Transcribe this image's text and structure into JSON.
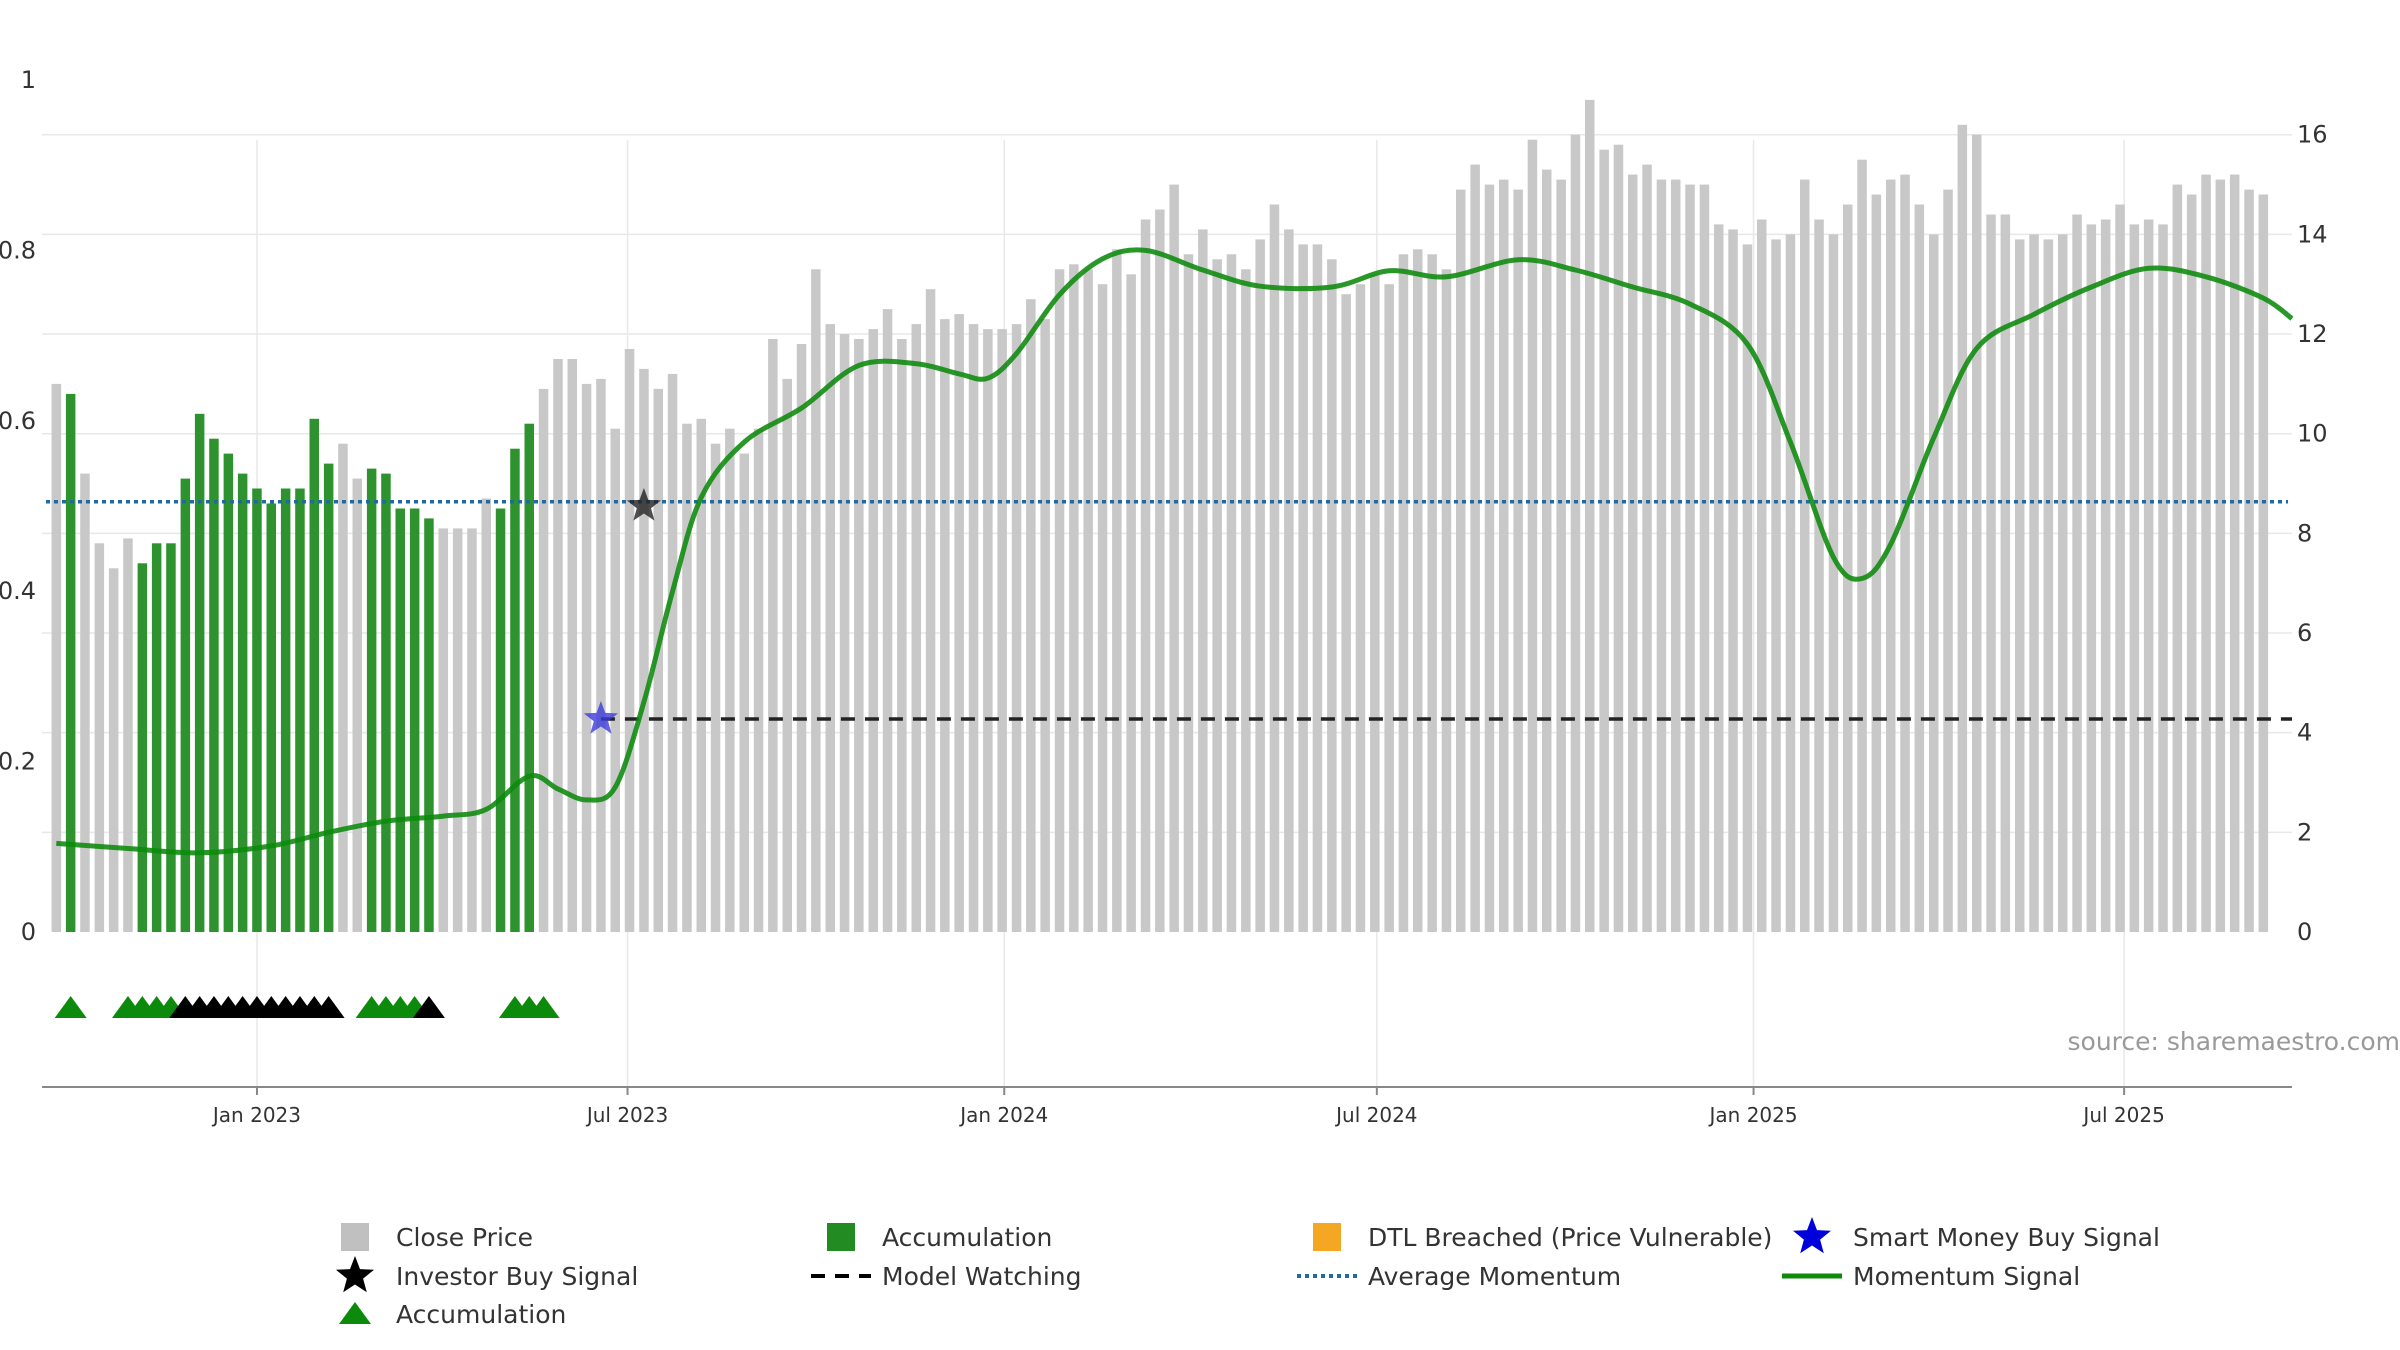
{
  "chart_data": {
    "type": "bar+line",
    "source": "source: sharemaestro.com",
    "x_range": [
      "2022-09-18",
      "2025-09-21"
    ],
    "x_ticks": [
      {
        "date": "2023-01-01",
        "label": "Jan 2023"
      },
      {
        "date": "2023-07-01",
        "label": "Jul 2023"
      },
      {
        "date": "2024-01-01",
        "label": "Jan 2024"
      },
      {
        "date": "2024-07-01",
        "label": "Jul 2024"
      },
      {
        "date": "2025-01-01",
        "label": "Jan 2025"
      },
      {
        "date": "2025-07-01",
        "label": "Jul 2025"
      }
    ],
    "left_axis": {
      "min": 0,
      "max": 1,
      "ticks": [
        0,
        0.2,
        0.4,
        0.6,
        0.8,
        1
      ],
      "tick_labels": [
        "0",
        "0.2",
        "0.4",
        "0.6",
        "0.8",
        "1"
      ]
    },
    "right_axis": {
      "min": 0,
      "max": 17.5,
      "ticks": [
        0,
        2,
        4,
        6,
        8,
        10,
        12,
        14,
        16
      ],
      "tick_labels": [
        "0",
        "2",
        "4",
        "6",
        "8",
        "10",
        "12",
        "14",
        "16"
      ]
    },
    "weekly_start": "2022-09-25",
    "close_price": [
      11.0,
      10.8,
      9.2,
      7.8,
      7.3,
      7.9,
      7.4,
      7.8,
      7.8,
      9.1,
      10.4,
      9.9,
      9.6,
      9.2,
      8.9,
      8.6,
      8.9,
      8.9,
      10.3,
      9.4,
      9.8,
      9.1,
      9.3,
      9.2,
      8.5,
      8.5,
      8.3,
      8.1,
      8.1,
      8.1,
      8.7,
      8.5,
      9.7,
      10.2,
      10.9,
      11.5,
      11.5,
      11.0,
      11.1,
      10.1,
      11.7,
      11.3,
      10.9,
      11.2,
      10.2,
      10.3,
      9.8,
      10.1,
      9.6,
      10.1,
      11.9,
      11.1,
      11.8,
      13.3,
      12.2,
      12.0,
      11.9,
      12.1,
      12.5,
      11.9,
      12.2,
      12.9,
      12.3,
      12.4,
      12.2,
      12.1,
      12.1,
      12.2,
      12.7,
      12.3,
      13.3,
      13.4,
      13.3,
      13.0,
      13.7,
      13.2,
      14.3,
      14.5,
      15.0,
      13.6,
      14.1,
      13.5,
      13.6,
      13.3,
      13.9,
      14.6,
      14.1,
      13.8,
      13.8,
      13.5,
      12.8,
      13.0,
      13.2,
      13.0,
      13.6,
      13.7,
      13.6,
      13.3,
      14.9,
      15.4,
      15.0,
      15.1,
      14.9,
      15.9,
      15.3,
      15.1,
      16.0,
      16.7,
      15.7,
      15.8,
      15.2,
      15.4,
      15.1,
      15.1,
      15.0,
      15.0,
      14.2,
      14.1,
      13.8,
      14.3,
      13.9,
      14.0,
      15.1,
      14.3,
      14.0,
      14.6,
      15.5,
      14.8,
      15.1,
      15.2,
      14.6,
      14.0,
      14.9,
      16.2,
      16.0,
      14.4,
      14.4,
      13.9,
      14.0,
      13.9,
      14.0,
      14.4,
      14.2,
      14.3,
      14.6,
      14.2,
      14.3,
      14.2,
      15.0,
      14.8,
      15.2,
      15.1,
      15.2,
      14.9,
      14.8
    ],
    "accumulation_bar_weeks": [
      1,
      6,
      7,
      8,
      9,
      10,
      11,
      12,
      13,
      14,
      15,
      16,
      17,
      18,
      19,
      22,
      23,
      24,
      25,
      26,
      31,
      32,
      33
    ],
    "momentum_signal": {
      "points": [
        [
          "2022-09-25",
          0.104
        ],
        [
          "2022-10-30",
          0.098
        ],
        [
          "2022-12-04",
          0.093
        ],
        [
          "2023-01-08",
          0.101
        ],
        [
          "2023-02-05",
          0.117
        ],
        [
          "2023-03-05",
          0.13
        ],
        [
          "2023-04-02",
          0.136
        ],
        [
          "2023-04-23",
          0.144
        ],
        [
          "2023-05-14",
          0.183
        ],
        [
          "2023-05-28",
          0.168
        ],
        [
          "2023-06-11",
          0.155
        ],
        [
          "2023-06-25",
          0.17
        ],
        [
          "2023-07-09",
          0.27
        ],
        [
          "2023-07-23",
          0.4
        ],
        [
          "2023-08-06",
          0.51
        ],
        [
          "2023-08-27",
          0.575
        ],
        [
          "2023-09-24",
          0.615
        ],
        [
          "2023-10-22",
          0.665
        ],
        [
          "2023-11-19",
          0.667
        ],
        [
          "2023-12-10",
          0.655
        ],
        [
          "2023-12-24",
          0.65
        ],
        [
          "2024-01-07",
          0.679
        ],
        [
          "2024-01-28",
          0.748
        ],
        [
          "2024-02-18",
          0.79
        ],
        [
          "2024-03-10",
          0.8
        ],
        [
          "2024-04-07",
          0.777
        ],
        [
          "2024-05-05",
          0.758
        ],
        [
          "2024-06-09",
          0.757
        ],
        [
          "2024-07-07",
          0.776
        ],
        [
          "2024-08-04",
          0.769
        ],
        [
          "2024-09-08",
          0.789
        ],
        [
          "2024-10-06",
          0.777
        ],
        [
          "2024-11-03",
          0.757
        ],
        [
          "2024-12-01",
          0.737
        ],
        [
          "2024-12-29",
          0.69
        ],
        [
          "2025-01-19",
          0.575
        ],
        [
          "2025-02-09",
          0.44
        ],
        [
          "2025-02-23",
          0.415
        ],
        [
          "2025-03-09",
          0.455
        ],
        [
          "2025-03-30",
          0.58
        ],
        [
          "2025-04-20",
          0.685
        ],
        [
          "2025-05-18",
          0.725
        ],
        [
          "2025-06-15",
          0.757
        ],
        [
          "2025-07-13",
          0.779
        ],
        [
          "2025-08-10",
          0.769
        ],
        [
          "2025-09-07",
          0.744
        ],
        [
          "2025-09-21",
          0.72
        ]
      ],
      "note": "plotted on the left axis (0–1)"
    },
    "average_momentum": 0.505,
    "model_watching": {
      "start": "2023-06-18",
      "end": "2025-09-21",
      "value": 0.25
    },
    "smart_money_buy_signal": [
      {
        "date": "2023-06-18",
        "value": 0.25
      }
    ],
    "investor_buy_signal": [
      {
        "date": "2023-07-09",
        "value": 0.5
      }
    ],
    "accumulation_markers": {
      "green": [
        "2022-10-02",
        "2022-10-30",
        "2022-11-06",
        "2022-11-13",
        "2022-11-20",
        "2023-02-26",
        "2023-03-05",
        "2023-03-12",
        "2023-03-19",
        "2023-05-07",
        "2023-05-14",
        "2023-05-21"
      ],
      "black": [
        "2022-11-27",
        "2022-12-04",
        "2022-12-11",
        "2022-12-18",
        "2022-12-25",
        "2023-01-01",
        "2023-01-08",
        "2023-01-15",
        "2023-01-22",
        "2023-01-29",
        "2023-02-05",
        "2023-03-26"
      ]
    },
    "legend": [
      {
        "id": "close-price",
        "label": "Close Price",
        "color": "#c0c0c0"
      },
      {
        "id": "accumulation-bar",
        "label": "Accumulation",
        "color": "#228b22"
      },
      {
        "id": "dtl-breached",
        "label": "DTL Breached (Price Vulnerable)",
        "color": "#f5a623"
      },
      {
        "id": "smart-money",
        "label": "Smart Money Buy Signal",
        "color": "#0000dd"
      },
      {
        "id": "investor-buy",
        "label": "Investor Buy Signal",
        "color": "#000000"
      },
      {
        "id": "model-watching",
        "label": "Model Watching",
        "color": "#000000"
      },
      {
        "id": "average-momentum",
        "label": "Average Momentum",
        "color": "#1f6aa0"
      },
      {
        "id": "momentum-signal",
        "label": "Momentum Signal",
        "color": "#0b8a0b"
      },
      {
        "id": "accumulation-marker",
        "label": "Accumulation",
        "color": "#0b8a0b"
      }
    ],
    "colors": {
      "close_bar": "#c8c8c8",
      "accum_bar": "#2e932e",
      "momentum_line": "#0b8a0b",
      "avg_line": "#1f6aa0",
      "model_line": "#222222",
      "grid": "#e8e8e8"
    }
  }
}
